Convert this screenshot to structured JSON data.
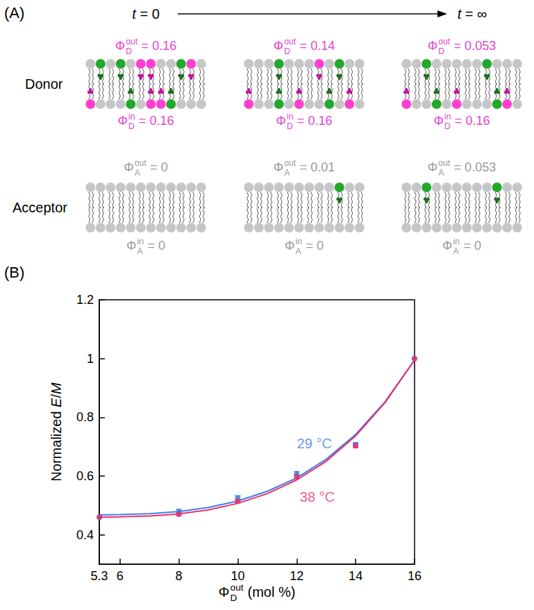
{
  "diagram": {
    "label": "(A)",
    "time_start": "t = 0",
    "time_end": "t = ∞",
    "symbol": "Φ",
    "relation": "=",
    "rows": [
      {
        "name": "Donor",
        "sub": "D",
        "color": "#e645d2"
      },
      {
        "name": "Acceptor",
        "sub": "A",
        "color": "#9a9a9a"
      }
    ],
    "leaflets": [
      "out",
      "in"
    ],
    "stages": [
      {
        "D": {
          "out": 0.16,
          "in": 0.16
        },
        "A": {
          "out": 0,
          "in": 0
        }
      },
      {
        "D": {
          "out": 0.14,
          "in": 0.16
        },
        "A": {
          "out": 0.01,
          "in": 0
        }
      },
      {
        "D": {
          "out": 0.053,
          "in": 0.16
        },
        "A": {
          "out": 0.053,
          "in": 0
        }
      }
    ]
  },
  "chart_data": {
    "type": "scatter",
    "panel_label": "(B)",
    "x_label": {
      "symbol": "Φ",
      "sub": "D",
      "sup": "out",
      "unit": "(mol %)"
    },
    "y_label": "Normalized E/M",
    "xlim": [
      5.3,
      16
    ],
    "xticks": [
      5.3,
      6,
      8,
      10,
      12,
      14,
      16
    ],
    "ylim": [
      0.3,
      1.2
    ],
    "yticks": [
      0.4,
      0.6,
      0.8,
      1,
      1.2
    ],
    "grid": false,
    "series": [
      {
        "name": "29 °C",
        "color": "#3d7fe6",
        "marker": "circle",
        "x": [
          5.3,
          8,
          10,
          12,
          14,
          16
        ],
        "values": [
          0.46,
          0.48,
          0.525,
          0.608,
          0.707,
          1.0
        ],
        "errors": [
          0.004,
          0.006,
          0.008,
          0.007,
          0.007,
          0.003
        ],
        "fit": {
          "type": "line",
          "line_style": "solid",
          "x": [
            5.3,
            6,
            7,
            8,
            9,
            10,
            11,
            12,
            13,
            14,
            15,
            16
          ],
          "values": [
            0.468,
            0.469,
            0.472,
            0.479,
            0.493,
            0.515,
            0.548,
            0.594,
            0.657,
            0.742,
            0.853,
            0.995
          ]
        },
        "label_at": [
          12.6,
          0.71
        ]
      },
      {
        "name": "38 °C",
        "color": "#e8306e",
        "marker": "circle",
        "x": [
          5.3,
          8,
          10,
          12,
          14,
          16
        ],
        "values": [
          0.46,
          0.47,
          0.515,
          0.598,
          0.703,
          1.0
        ],
        "errors": [
          0.004,
          0.005,
          0.006,
          0.007,
          0.006,
          0.003
        ],
        "fit": {
          "type": "line",
          "line_style": "solid",
          "x": [
            5.3,
            6,
            7,
            8,
            9,
            10,
            11,
            12,
            13,
            14,
            15,
            16
          ],
          "values": [
            0.46,
            0.461,
            0.464,
            0.471,
            0.485,
            0.507,
            0.54,
            0.587,
            0.65,
            0.737,
            0.85,
            0.995
          ]
        },
        "label_at": [
          12.7,
          0.53
        ]
      }
    ]
  }
}
